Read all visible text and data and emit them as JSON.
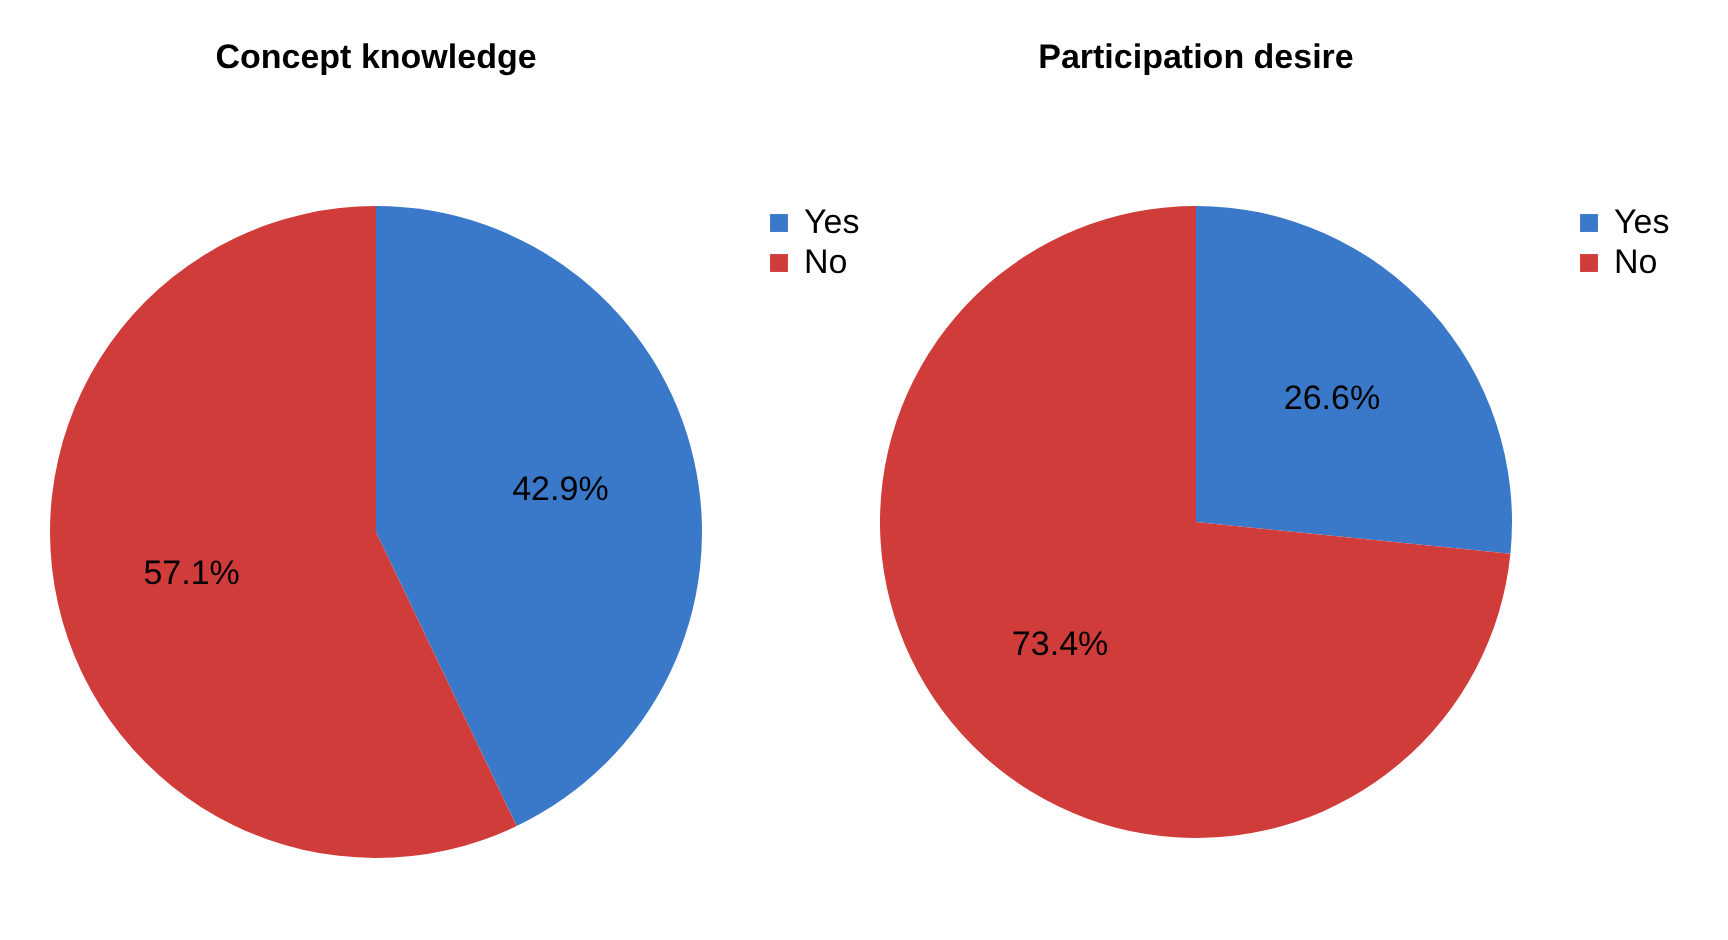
{
  "chart_data": [
    {
      "type": "pie",
      "title": "Concept knowledge",
      "categories": [
        "Yes",
        "No"
      ],
      "values": [
        42.9,
        57.1
      ],
      "colors": [
        "#3a78c9",
        "#d03c3a"
      ],
      "value_labels": [
        "42.9%",
        "57.1%"
      ],
      "legend": "right"
    },
    {
      "type": "pie",
      "title": "Participation desire",
      "categories": [
        "Yes",
        "No"
      ],
      "values": [
        26.6,
        73.4
      ],
      "colors": [
        "#3a78c9",
        "#d03c3a"
      ],
      "value_labels": [
        "26.6%",
        "73.4%"
      ],
      "legend": "right"
    }
  ]
}
